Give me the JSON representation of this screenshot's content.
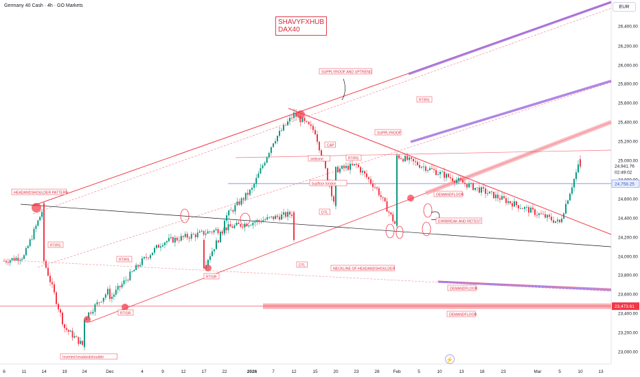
{
  "header": {
    "title": "Germany 40 Cash · 4h · GO Markets",
    "currency": "EUR"
  },
  "brand": {
    "line1": "SHAVYFXHUB",
    "line2": "DAX40"
  },
  "colors": {
    "up": "#089981",
    "down": "#f23645",
    "trend_red": "#f23645",
    "purple": "#9c6ade",
    "zone_pink": "#f7a1a8",
    "neckline": "#131722",
    "hline_blue": "#5b7ae8"
  },
  "chart_data": {
    "type": "candlestick",
    "title": "Germany 40 Cash · 4h · GO Markets",
    "y_ticks": [
      "26,400.00",
      "26,200.00",
      "26,000.00",
      "25,800.00",
      "25,600.00",
      "25,400.00",
      "25,200.00",
      "25,000.00",
      "24,800.00",
      "24,600.00",
      "24,400.00",
      "24,200.00",
      "24,000.00",
      "23,800.00",
      "23,600.00",
      "23,400.00",
      "23,200.00",
      "23,000.00"
    ],
    "ylim": [
      22950,
      26550
    ],
    "x_ticks": [
      "6",
      "11",
      "14",
      "19",
      "24",
      "Dec",
      "4",
      "9",
      "12",
      "17",
      "22",
      "2026",
      "7",
      "12",
      "15",
      "20",
      "23",
      "28",
      "Feb",
      "5",
      "10",
      "13",
      "18",
      "23",
      "Mar",
      "5",
      "10",
      "13"
    ],
    "price_labels": [
      {
        "text": "24,941.76",
        "value": 24941.76,
        "style": "last"
      },
      {
        "text": "02:49:02",
        "value": 24880,
        "style": "countdown"
      },
      {
        "text": "24,758.25",
        "value": 24758.25,
        "style": "blue"
      },
      {
        "text": "23,473.61",
        "value": 23473.61,
        "style": "red"
      }
    ],
    "path_anchors": [
      {
        "x": "6",
        "price": 23950
      },
      {
        "x": "11",
        "price": 24000
      },
      {
        "x": "14",
        "price": 24520
      },
      {
        "x": "14",
        "price": 23950
      },
      {
        "x": "19",
        "price": 23250
      },
      {
        "x": "24",
        "price": 23050
      },
      {
        "x": "24",
        "price": 23350
      },
      {
        "x": "Dec",
        "price": 23650
      },
      {
        "x": "Dec",
        "price": 23550
      },
      {
        "x": "4",
        "price": 23950
      },
      {
        "x": "9",
        "price": 24150
      },
      {
        "x": "12",
        "price": 24450
      },
      {
        "x": "12",
        "price": 24200
      },
      {
        "x": "17",
        "price": 23900
      },
      {
        "x": "22",
        "price": 24300
      },
      {
        "x": "22",
        "price": 24400
      },
      {
        "x": "2026",
        "price": 24700
      },
      {
        "x": "7",
        "price": 25200
      },
      {
        "x": "12",
        "price": 25480
      },
      {
        "x": "15",
        "price": 25300
      },
      {
        "x": "20",
        "price": 24500
      },
      {
        "x": "20",
        "price": 24900
      },
      {
        "x": "23",
        "price": 24950
      },
      {
        "x": "28",
        "price": 24700
      },
      {
        "x": "Feb",
        "price": 24300
      },
      {
        "x": "Feb",
        "price": 25050
      },
      {
        "x": "5",
        "price": 24350
      },
      {
        "x": "10",
        "price": 25000
      },
      {
        "x": "10",
        "price": 24940
      }
    ],
    "annotations": [
      "HEADANDSHOULDER PATTERN",
      "RT/RS",
      "RT/RS",
      "RT/SR",
      "RT/SR",
      "Inverted headandshoulder",
      "SUPPLYROOF AND UPTREND",
      "CAP",
      "sellzone",
      "RT/RS",
      "buyfloor london",
      "DTL",
      "DTL",
      "SUPPLYROOF",
      "RT/RS",
      "NECKLINE OF HEADANDSHOULDER",
      "DEMANDFLOOR",
      "EHRBREAK AND RETEST",
      "DEMANDFLOOR",
      "DEMANDFLOOR"
    ]
  }
}
